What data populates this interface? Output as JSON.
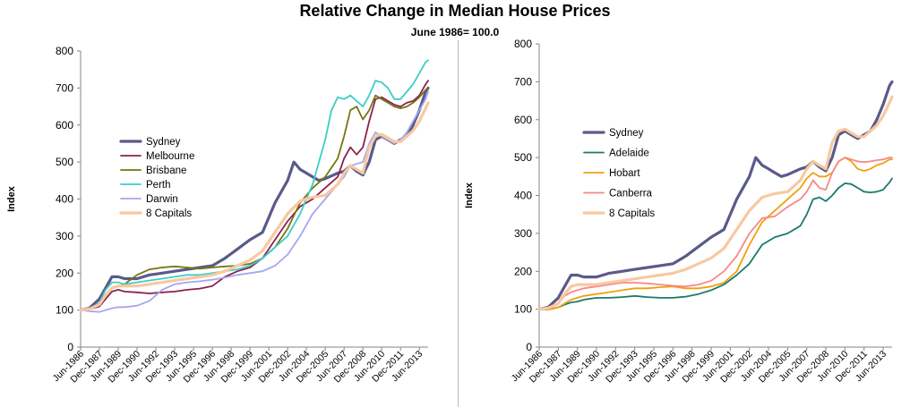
{
  "title": "Relative Change in Median House Prices",
  "subtitle": "June 1986= 100.0",
  "chart_data": [
    {
      "type": "line",
      "ylabel": "Index",
      "ylim": [
        0,
        800
      ],
      "yticks": [
        0,
        100,
        200,
        300,
        400,
        500,
        600,
        700,
        800
      ],
      "xlim": [
        1986.5,
        2014.2
      ],
      "xtick_labels": [
        "Jun-1986",
        "Dec-1987",
        "Jun-1989",
        "Dec-1990",
        "Jun-1992",
        "Dec-1993",
        "Jun-1995",
        "Dec-1996",
        "Jun-1998",
        "Dec-1999",
        "Jun-2001",
        "Dec-2002",
        "Jun-2004",
        "Dec-2005",
        "Jun-2007",
        "Dec-2008",
        "Jun-2010",
        "Dec-2011",
        "Jun-2013"
      ],
      "xtick_years": [
        1986.5,
        1988,
        1989.5,
        1991,
        1992.5,
        1994,
        1995.5,
        1997,
        1998.5,
        2000,
        2001.5,
        2003,
        2004.5,
        2006,
        2007.5,
        2009,
        2010.5,
        2012,
        2013.5
      ],
      "legend_position": "left-middle",
      "series": [
        {
          "name": "Sydney",
          "color": "#5a5a8a",
          "width": 3.2,
          "x": [
            1986.5,
            1987.2,
            1988,
            1988.5,
            1989,
            1989.5,
            1990,
            1991,
            1992,
            1993,
            1994,
            1995,
            1996,
            1997,
            1998,
            1999,
            2000,
            2001,
            2002,
            2003,
            2003.5,
            2004,
            2004.5,
            2005,
            2005.5,
            2006,
            2007,
            2007.5,
            2008,
            2008.5,
            2009,
            2009.5,
            2010,
            2010.5,
            2011,
            2011.5,
            2012,
            2012.5,
            2013,
            2013.5,
            2014,
            2014.2
          ],
          "y": [
            100,
            105,
            130,
            160,
            190,
            190,
            185,
            185,
            195,
            200,
            205,
            210,
            215,
            220,
            240,
            265,
            290,
            310,
            390,
            450,
            500,
            480,
            470,
            460,
            450,
            455,
            470,
            475,
            490,
            475,
            465,
            500,
            560,
            570,
            560,
            550,
            560,
            570,
            600,
            640,
            690,
            700
          ]
        },
        {
          "name": "Melbourne",
          "color": "#8b2252",
          "width": 1.8,
          "x": [
            1986.5,
            1987.2,
            1988,
            1988.5,
            1989,
            1989.5,
            1990,
            1991,
            1992,
            1993,
            1994,
            1995,
            1996,
            1997,
            1998,
            1999,
            2000,
            2001,
            2002,
            2003,
            2004,
            2005,
            2006,
            2007,
            2007.5,
            2008,
            2008.5,
            2009,
            2009.5,
            2010,
            2010.5,
            2011,
            2011.5,
            2012,
            2012.5,
            2013,
            2013.5,
            2014,
            2014.2
          ],
          "y": [
            100,
            102,
            110,
            130,
            150,
            155,
            150,
            148,
            145,
            148,
            150,
            155,
            158,
            165,
            190,
            205,
            215,
            240,
            290,
            340,
            380,
            400,
            430,
            460,
            510,
            540,
            520,
            540,
            610,
            670,
            675,
            665,
            655,
            650,
            660,
            665,
            680,
            710,
            720
          ]
        },
        {
          "name": "Brisbane",
          "color": "#76760e",
          "width": 1.8,
          "x": [
            1986.5,
            1987.2,
            1988,
            1988.5,
            1989,
            1989.5,
            1990,
            1991,
            1992,
            1993,
            1994,
            1995,
            1996,
            1997,
            1998,
            1999,
            2000,
            2001,
            2002,
            2003,
            2004,
            2005,
            2006,
            2007,
            2007.5,
            2008,
            2008.5,
            2009,
            2009.5,
            2010,
            2010.5,
            2011,
            2011.5,
            2012,
            2012.5,
            2013,
            2013.5,
            2014,
            2014.2
          ],
          "y": [
            100,
            102,
            115,
            140,
            160,
            165,
            170,
            195,
            210,
            215,
            218,
            215,
            212,
            215,
            218,
            220,
            225,
            240,
            270,
            320,
            390,
            430,
            460,
            510,
            570,
            640,
            650,
            615,
            640,
            680,
            670,
            660,
            650,
            645,
            650,
            660,
            675,
            695,
            700
          ]
        },
        {
          "name": "Perth",
          "color": "#3ecdc6",
          "width": 1.8,
          "x": [
            1986.5,
            1987.2,
            1988,
            1988.5,
            1989,
            1989.5,
            1990,
            1991,
            1992,
            1993,
            1994,
            1995,
            1996,
            1997,
            1998,
            1999,
            2000,
            2001,
            2002,
            2003,
            2004,
            2005,
            2006,
            2006.5,
            2007,
            2007.5,
            2008,
            2008.5,
            2009,
            2009.5,
            2010,
            2010.5,
            2011,
            2011.5,
            2012,
            2012.5,
            2013,
            2013.5,
            2014,
            2014.2
          ],
          "y": [
            100,
            103,
            120,
            155,
            175,
            175,
            170,
            175,
            180,
            185,
            190,
            195,
            195,
            200,
            205,
            210,
            220,
            240,
            270,
            300,
            360,
            440,
            560,
            640,
            675,
            670,
            680,
            665,
            650,
            680,
            720,
            715,
            700,
            670,
            670,
            690,
            710,
            740,
            770,
            775
          ]
        },
        {
          "name": "Darwin",
          "color": "#a6a6f0",
          "width": 1.8,
          "x": [
            1986.5,
            1987.2,
            1988,
            1988.5,
            1989,
            1989.5,
            1990,
            1991,
            1992,
            1993,
            1994,
            1995,
            1996,
            1997,
            1998,
            1999,
            2000,
            2001,
            2002,
            2003,
            2004,
            2005,
            2006,
            2007,
            2007.5,
            2008,
            2008.5,
            2009,
            2009.5,
            2010,
            2010.5,
            2011,
            2011.5,
            2012,
            2012.5,
            2013,
            2013.5,
            2014,
            2014.2
          ],
          "y": [
            100,
            97,
            95,
            100,
            105,
            108,
            108,
            112,
            125,
            155,
            170,
            175,
            178,
            182,
            188,
            195,
            200,
            205,
            220,
            250,
            300,
            360,
            400,
            440,
            460,
            490,
            495,
            500,
            550,
            580,
            570,
            560,
            550,
            560,
            580,
            610,
            640,
            670,
            690
          ]
        },
        {
          "name": "8 Capitals",
          "color": "#f8c8a0",
          "width": 3.2,
          "x": [
            1986.5,
            1987.2,
            1988,
            1988.5,
            1989,
            1989.5,
            1990,
            1991,
            1992,
            1993,
            1994,
            1995,
            1996,
            1997,
            1998,
            1999,
            2000,
            2001,
            2002,
            2003,
            2004,
            2005,
            2006,
            2007,
            2007.5,
            2008,
            2008.5,
            2009,
            2009.5,
            2010,
            2010.5,
            2011,
            2011.5,
            2012,
            2012.5,
            2013,
            2013.5,
            2014,
            2014.2
          ],
          "y": [
            100,
            103,
            115,
            140,
            160,
            165,
            165,
            165,
            170,
            175,
            180,
            185,
            190,
            195,
            205,
            220,
            235,
            260,
            310,
            360,
            395,
            405,
            410,
            440,
            470,
            490,
            480,
            470,
            540,
            570,
            575,
            565,
            555,
            555,
            570,
            585,
            610,
            645,
            660
          ]
        }
      ]
    },
    {
      "type": "line",
      "ylabel": "Index",
      "ylim": [
        0,
        800
      ],
      "yticks": [
        0,
        100,
        200,
        300,
        400,
        500,
        600,
        700,
        800
      ],
      "xlim": [
        1986.5,
        2014.2
      ],
      "xtick_labels": [
        "Jun-1986",
        "Dec-1987",
        "Jun-1989",
        "Dec-1990",
        "Jun-1992",
        "Dec-1993",
        "Jun-1995",
        "Dec-1996",
        "Jun-1998",
        "Dec-1999",
        "Jun-2001",
        "Dec-2002",
        "Jun-2004",
        "Dec-2005",
        "Jun-2007",
        "Dec-2008",
        "Jun-2010",
        "Dec-2011",
        "Jun-2013"
      ],
      "xtick_years": [
        1986.5,
        1988,
        1989.5,
        1991,
        1992.5,
        1994,
        1995.5,
        1997,
        1998.5,
        2000,
        2001.5,
        2003,
        2004.5,
        2006,
        2007.5,
        2009,
        2010.5,
        2012,
        2013.5
      ],
      "legend_position": "left-middle",
      "series": [
        {
          "name": "Sydney",
          "color": "#5a5a8a",
          "width": 3.2,
          "x": [
            1986.5,
            1987.2,
            1988,
            1988.5,
            1989,
            1989.5,
            1990,
            1991,
            1992,
            1993,
            1994,
            1995,
            1996,
            1997,
            1998,
            1999,
            2000,
            2001,
            2002,
            2003,
            2003.5,
            2004,
            2004.5,
            2005,
            2005.5,
            2006,
            2007,
            2007.5,
            2008,
            2008.5,
            2009,
            2009.5,
            2010,
            2010.5,
            2011,
            2011.5,
            2012,
            2012.5,
            2013,
            2013.5,
            2014,
            2014.2
          ],
          "y": [
            100,
            105,
            130,
            160,
            190,
            190,
            185,
            185,
            195,
            200,
            205,
            210,
            215,
            220,
            240,
            265,
            290,
            310,
            390,
            450,
            500,
            480,
            470,
            460,
            450,
            455,
            470,
            475,
            490,
            475,
            465,
            500,
            560,
            570,
            560,
            550,
            560,
            570,
            600,
            640,
            690,
            700
          ]
        },
        {
          "name": "Adelaide",
          "color": "#1a7a6c",
          "width": 1.8,
          "x": [
            1986.5,
            1987.2,
            1988,
            1988.5,
            1989,
            1989.5,
            1990,
            1991,
            1992,
            1993,
            1994,
            1995,
            1996,
            1997,
            1998,
            1999,
            2000,
            2001,
            2002,
            2003,
            2004,
            2005,
            2006,
            2007,
            2007.5,
            2008,
            2008.5,
            2009,
            2009.5,
            2010,
            2010.5,
            2011,
            2011.5,
            2012,
            2012.5,
            2013,
            2013.5,
            2014,
            2014.2
          ],
          "y": [
            100,
            99,
            105,
            112,
            118,
            120,
            125,
            130,
            130,
            132,
            135,
            132,
            130,
            130,
            133,
            140,
            150,
            165,
            190,
            220,
            270,
            290,
            300,
            320,
            350,
            390,
            395,
            385,
            400,
            420,
            432,
            430,
            420,
            410,
            408,
            410,
            415,
            435,
            445
          ]
        },
        {
          "name": "Hobart",
          "color": "#f0a010",
          "width": 1.8,
          "x": [
            1986.5,
            1987.2,
            1988,
            1988.5,
            1989,
            1989.5,
            1990,
            1991,
            1992,
            1993,
            1994,
            1995,
            1996,
            1997,
            1998,
            1999,
            2000,
            2001,
            2002,
            2003,
            2004,
            2005,
            2006,
            2007,
            2007.5,
            2008,
            2008.5,
            2009,
            2009.5,
            2010,
            2010.5,
            2011,
            2011.5,
            2012,
            2012.5,
            2013,
            2013.5,
            2014,
            2014.2
          ],
          "y": [
            100,
            99,
            105,
            115,
            125,
            130,
            135,
            140,
            145,
            150,
            155,
            155,
            158,
            160,
            155,
            155,
            160,
            170,
            200,
            270,
            330,
            360,
            390,
            420,
            445,
            460,
            450,
            450,
            460,
            490,
            500,
            490,
            470,
            465,
            470,
            480,
            485,
            495,
            495
          ]
        },
        {
          "name": "Canberra",
          "color": "#f88888",
          "width": 1.8,
          "x": [
            1986.5,
            1987.2,
            1988,
            1988.5,
            1989,
            1989.5,
            1990,
            1991,
            1992,
            1993,
            1994,
            1995,
            1996,
            1997,
            1998,
            1999,
            2000,
            2001,
            2002,
            2003,
            2004,
            2005,
            2006,
            2007,
            2007.5,
            2008,
            2008.5,
            2009,
            2009.5,
            2010,
            2010.5,
            2011,
            2011.5,
            2012,
            2012.5,
            2013,
            2013.5,
            2014,
            2014.2
          ],
          "y": [
            100,
            102,
            115,
            135,
            145,
            150,
            155,
            160,
            165,
            170,
            170,
            168,
            165,
            162,
            160,
            165,
            175,
            200,
            240,
            300,
            340,
            345,
            370,
            390,
            410,
            440,
            420,
            415,
            460,
            490,
            500,
            495,
            490,
            488,
            490,
            493,
            495,
            500,
            500
          ]
        },
        {
          "name": "8 Capitals",
          "color": "#f8c8a0",
          "width": 3.2,
          "x": [
            1986.5,
            1987.2,
            1988,
            1988.5,
            1989,
            1989.5,
            1990,
            1991,
            1992,
            1993,
            1994,
            1995,
            1996,
            1997,
            1998,
            1999,
            2000,
            2001,
            2002,
            2003,
            2004,
            2005,
            2006,
            2007,
            2007.5,
            2008,
            2008.5,
            2009,
            2009.5,
            2010,
            2010.5,
            2011,
            2011.5,
            2012,
            2012.5,
            2013,
            2013.5,
            2014,
            2014.2
          ],
          "y": [
            100,
            103,
            115,
            140,
            160,
            165,
            165,
            165,
            170,
            175,
            180,
            185,
            190,
            195,
            205,
            220,
            235,
            260,
            310,
            360,
            395,
            405,
            410,
            440,
            470,
            490,
            480,
            470,
            540,
            570,
            575,
            565,
            555,
            555,
            570,
            585,
            610,
            645,
            660
          ]
        }
      ]
    }
  ]
}
